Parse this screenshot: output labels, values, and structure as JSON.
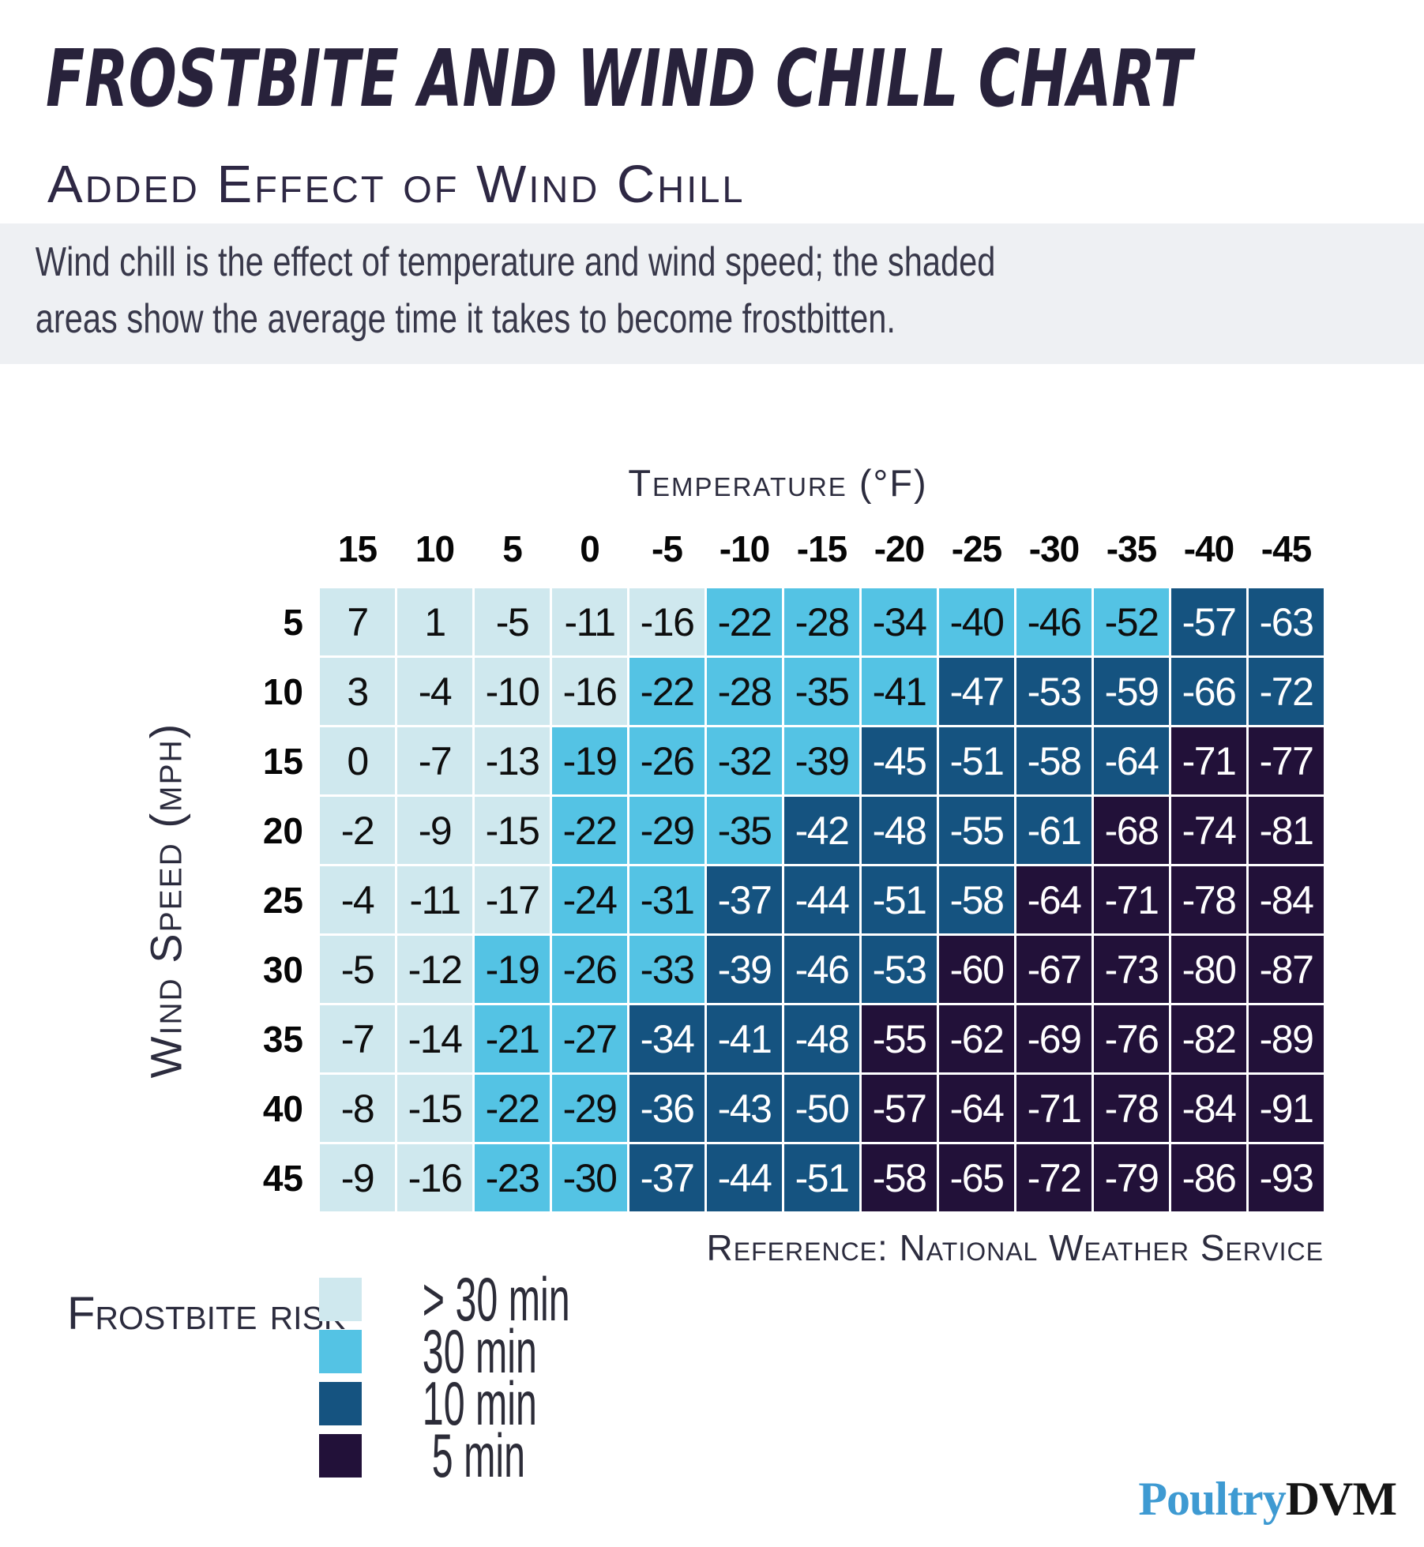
{
  "header": {
    "title": "FROSTBITE AND WIND CHILL CHART",
    "subtitle": "Added Effect of Wind Chill",
    "description": "Wind chill is the effect of temperature and wind speed; the shaded\nareas show the average time it takes to become frostbitten."
  },
  "chart_data": {
    "type": "heatmap",
    "title": "Frostbite and Wind Chill Chart",
    "xlabel": "Temperature (°F)",
    "ylabel": "Wind Speed (mph)",
    "columns": [
      15,
      10,
      5,
      0,
      -5,
      -10,
      -15,
      -20,
      -25,
      -30,
      -35,
      -40,
      -45
    ],
    "rows": [
      5,
      10,
      15,
      20,
      25,
      30,
      35,
      40,
      45
    ],
    "values": [
      [
        7,
        1,
        -5,
        -11,
        -16,
        -22,
        -28,
        -34,
        -40,
        -46,
        -52,
        -57,
        -63
      ],
      [
        3,
        -4,
        -10,
        -16,
        -22,
        -28,
        -35,
        -41,
        -47,
        -53,
        -59,
        -66,
        -72
      ],
      [
        0,
        -7,
        -13,
        -19,
        -26,
        -32,
        -39,
        -45,
        -51,
        -58,
        -64,
        -71,
        -77
      ],
      [
        -2,
        -9,
        -15,
        -22,
        -29,
        -35,
        -42,
        -48,
        -55,
        -61,
        -68,
        -74,
        -81
      ],
      [
        -4,
        -11,
        -17,
        -24,
        -31,
        -37,
        -44,
        -51,
        -58,
        -64,
        -71,
        -78,
        -84
      ],
      [
        -5,
        -12,
        -19,
        -26,
        -33,
        -39,
        -46,
        -53,
        -60,
        -67,
        -73,
        -80,
        -87
      ],
      [
        -7,
        -14,
        -21,
        -27,
        -34,
        -41,
        -48,
        -55,
        -62,
        -69,
        -76,
        -82,
        -89
      ],
      [
        -8,
        -15,
        -22,
        -29,
        -36,
        -43,
        -50,
        -57,
        -64,
        -71,
        -78,
        -84,
        -91
      ],
      [
        -9,
        -16,
        -23,
        -30,
        -37,
        -44,
        -51,
        -58,
        -65,
        -72,
        -79,
        -86,
        -93
      ]
    ],
    "risk_levels": [
      "LLLLLMMMMMMDD",
      "LLLLMMMMDDDDD",
      "LLLMMMMDDDDXX",
      "LLLMMMDDDDXXX",
      "LLLMMDDDDXXXX",
      "LLMMMDDDXXXXX",
      "LLMMDDDXXXXXX",
      "LLMMDDDXXXXXX",
      "LLMMDDDXXXXXX"
    ],
    "cell_colors": {
      "L": "#cfe8ee",
      "M": "#54c3e4",
      "D": "#155380",
      "X": "#221139"
    },
    "cell_text_colors": {
      "L": "#0e0e0e",
      "M": "#0e0e0e",
      "D": "#ffffff",
      "X": "#ffffff"
    },
    "legend": {
      "label": "Frostbite risk",
      "categories": [
        {
          "key": "L",
          "label": "> 30 min",
          "color": "#cfe8ee"
        },
        {
          "key": "M",
          "label": "30 min",
          "color": "#54c3e4"
        },
        {
          "key": "D",
          "label": "10 min",
          "color": "#155380"
        },
        {
          "key": "X",
          "label": "5 min",
          "color": "#221139"
        }
      ]
    },
    "reference": "Reference: National Weather Service"
  },
  "footer": {
    "logo": {
      "text_blue": "Poultry",
      "text_black": "DVM",
      "blue": "#3e9ad2",
      "black": "#151515"
    }
  }
}
